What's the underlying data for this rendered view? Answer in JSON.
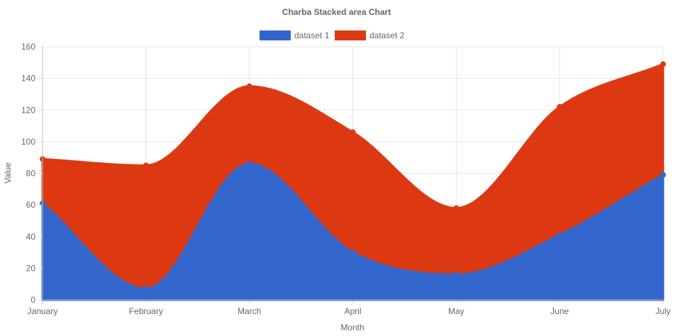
{
  "chart_data": {
    "type": "area",
    "stacked": true,
    "title": "Charba Stacked area Chart",
    "xlabel": "Month",
    "ylabel": "Value",
    "categories": [
      "January",
      "February",
      "March",
      "April",
      "May",
      "June",
      "July"
    ],
    "ylim": [
      0,
      160
    ],
    "yticks": [
      0,
      20,
      40,
      60,
      80,
      100,
      120,
      140,
      160
    ],
    "grid": true,
    "legend_position": "top",
    "series": [
      {
        "name": "dataset 1",
        "color": "#3366cc",
        "values": [
          61,
          7,
          86,
          30,
          16,
          41,
          79
        ]
      },
      {
        "name": "dataset 2",
        "color": "#dc3912",
        "values": [
          28,
          78,
          49,
          76,
          42,
          81,
          70
        ]
      }
    ]
  }
}
